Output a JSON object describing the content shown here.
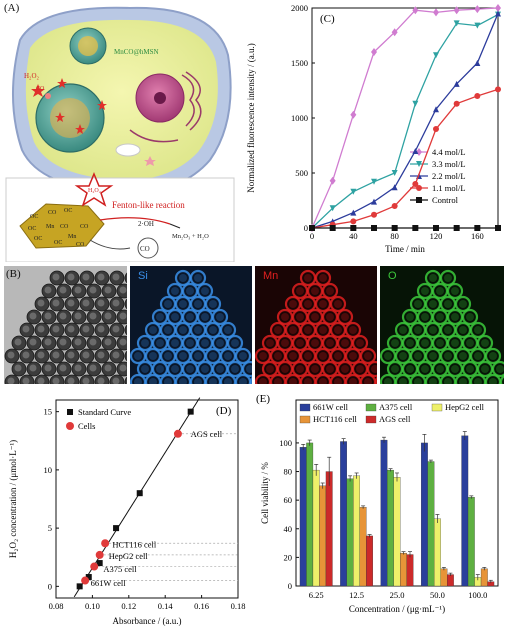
{
  "panels": {
    "A": {
      "label": "(A)",
      "particle_label": "MnCO@hMSN",
      "h2o2": "H₂O₂",
      "co": "CO",
      "reaction_label": "Fenton-like reaction",
      "hydroxyl": "2·OH",
      "products": "Mn₂O₃ + H₂O",
      "co_out": "CO",
      "h2o2_star": "H₂O₂",
      "oc_labels": [
        "OC",
        "CO",
        "OC",
        "OC",
        "Mn",
        "CO",
        "OC",
        "Mn",
        "CO",
        "OC",
        "CO"
      ]
    },
    "B": {
      "label": "(B)",
      "channels": [
        {
          "name": "Si",
          "color": "#3a8fe8",
          "bg": "#0a1628"
        },
        {
          "name": "Mn",
          "color": "#e02020",
          "bg": "#1a0505"
        },
        {
          "name": "O",
          "color": "#3cc83c",
          "bg": "#061406"
        }
      ]
    }
  },
  "chart_data": [
    {
      "panel": "C",
      "label": "(C)",
      "type": "line",
      "xlabel": "Time / min",
      "ylabel": "Normalized fluorescence intensity / (a.u.)",
      "xlim": [
        0,
        180
      ],
      "ylim": [
        0,
        2000
      ],
      "xticks": [
        0,
        40,
        80,
        120,
        160
      ],
      "yticks": [
        0,
        500,
        1000,
        1500,
        2000
      ],
      "legend_position": "bottom-right",
      "series": [
        {
          "name": "4.4 mol/L",
          "color": "#d07cd0",
          "marker": "diamond",
          "x": [
            0,
            20,
            40,
            60,
            80,
            100,
            120,
            140,
            160,
            180
          ],
          "y": [
            0,
            430,
            1030,
            1600,
            1780,
            1980,
            1960,
            1980,
            1990,
            2000
          ]
        },
        {
          "name": "3.3 mol/L",
          "color": "#2ea2a2",
          "marker": "triangle-down",
          "x": [
            0,
            20,
            40,
            60,
            80,
            100,
            120,
            140,
            160,
            180
          ],
          "y": [
            0,
            180,
            330,
            420,
            500,
            1130,
            1570,
            1860,
            1840,
            1940
          ]
        },
        {
          "name": "2.2 mol/L",
          "color": "#2c3c9c",
          "marker": "triangle-up",
          "x": [
            0,
            20,
            40,
            60,
            80,
            100,
            120,
            140,
            160,
            180
          ],
          "y": [
            0,
            60,
            140,
            240,
            370,
            700,
            1080,
            1310,
            1500,
            1950
          ]
        },
        {
          "name": "1.1 mol/L",
          "color": "#e03a3a",
          "marker": "circle",
          "x": [
            0,
            20,
            40,
            60,
            80,
            100,
            120,
            140,
            160,
            180
          ],
          "y": [
            0,
            30,
            60,
            120,
            200,
            400,
            900,
            1130,
            1200,
            1260
          ]
        },
        {
          "name": "Control",
          "color": "#111111",
          "marker": "square",
          "x": [
            0,
            20,
            40,
            60,
            80,
            100,
            120,
            140,
            160,
            180
          ],
          "y": [
            0,
            0,
            0,
            0,
            0,
            0,
            0,
            0,
            0,
            0
          ]
        }
      ]
    },
    {
      "panel": "D",
      "label": "(D)",
      "type": "scatter",
      "xlabel": "Absorbance / (a.u.)",
      "ylabel": "H₂O₂ concentration / (μmol·L⁻¹)",
      "xlim": [
        0.08,
        0.18
      ],
      "ylim": [
        -1,
        16
      ],
      "xticks": [
        0.08,
        0.1,
        0.12,
        0.14,
        0.16,
        0.18
      ],
      "yticks": [
        0,
        5,
        10,
        15
      ],
      "legend_position": "top-left",
      "series": [
        {
          "name": "Standard Curve",
          "color": "#111111",
          "marker": "square",
          "x": [
            0.093,
            0.098,
            0.104,
            0.113,
            0.126,
            0.154
          ],
          "y": [
            0,
            0.8,
            2,
            5,
            8,
            15
          ]
        },
        {
          "name": "Cells",
          "color": "#e03a3a",
          "marker": "circle",
          "x": [
            0.096,
            0.101,
            0.104,
            0.107,
            0.147
          ],
          "y": [
            0.5,
            1.7,
            2.7,
            3.7,
            13.1
          ]
        }
      ],
      "fit_line": {
        "x": [
          0.09,
          0.159
        ],
        "y": [
          -0.9,
          16.2
        ]
      },
      "annotations": [
        {
          "text": "661W cell",
          "x": 0.099,
          "y": 0.3
        },
        {
          "text": "A375 cell",
          "x": 0.106,
          "y": 1.5
        },
        {
          "text": "HepG2 cell",
          "x": 0.109,
          "y": 2.6
        },
        {
          "text": "HCT116 cell",
          "x": 0.111,
          "y": 3.6
        },
        {
          "text": "AGS cell",
          "x": 0.154,
          "y": 13.1
        }
      ]
    },
    {
      "panel": "E",
      "label": "(E)",
      "type": "bar",
      "xlabel": "Concentration / (μg·mL⁻¹)",
      "ylabel": "Cell viability / %",
      "categories": [
        "6.25",
        "12.5",
        "25.0",
        "50.0",
        "100.0"
      ],
      "ylim": [
        0,
        130
      ],
      "yticks": [
        0,
        20,
        40,
        60,
        80,
        100
      ],
      "legend_position": "top",
      "series": [
        {
          "name": "661W cell",
          "color": "#2a3f9c",
          "values": [
            97,
            101,
            102,
            100,
            105
          ],
          "errors": [
            2,
            2,
            2,
            6,
            3
          ]
        },
        {
          "name": "A375 cell",
          "color": "#5eb041",
          "values": [
            100,
            75,
            81,
            87,
            62
          ],
          "errors": [
            2,
            2,
            1,
            1,
            1
          ]
        },
        {
          "name": "HepG2 cell",
          "color": "#eef06a",
          "values": [
            81,
            77,
            76,
            47,
            6
          ],
          "errors": [
            4,
            2,
            3,
            3,
            2
          ]
        },
        {
          "name": "HCT116 cell",
          "color": "#e79438",
          "values": [
            70,
            55,
            23,
            12,
            12
          ],
          "errors": [
            2,
            1,
            1,
            1,
            1
          ]
        },
        {
          "name": "AGS cell",
          "color": "#cc2a2a",
          "values": [
            80,
            35,
            22,
            8,
            3
          ],
          "errors": [
            10,
            1,
            2,
            1,
            1
          ]
        }
      ]
    }
  ]
}
